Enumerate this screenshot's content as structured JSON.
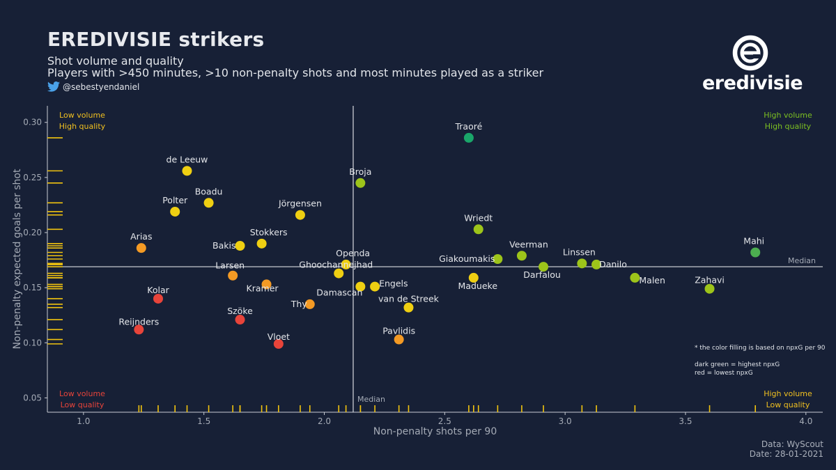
{
  "header": {
    "title": "EREDIVISIE strikers",
    "subtitle1": "Shot volume and quality",
    "subtitle2": "Players with >450 minutes, >10 non-penalty shots and most minutes played as a striker",
    "handle": "@sebestyendaniel",
    "twitter_icon": "twitter-bird-icon"
  },
  "logo": {
    "wordmark": "eredivisie",
    "icon": "eredivisie-e-logo-icon"
  },
  "footer": {
    "source": "Data: WyScout",
    "date": "Date: 28-01-2021"
  },
  "colors": {
    "background": "#172036",
    "axis": "#c8ccd4",
    "rug": "#f2c40f",
    "dark_green": "#1aa66a",
    "green": "#4caf50",
    "yellow_green": "#9dc41a",
    "yellow": "#efcf12",
    "orange": "#f49a24",
    "red": "#e8443a"
  },
  "chart_data": {
    "type": "scatter",
    "xlabel": "Non-penalty shots per 90",
    "ylabel": "Non-penalty expected goals per shot",
    "xlim": [
      0.85,
      4.07
    ],
    "ylim": [
      0.037,
      0.315
    ],
    "xticks": [
      "1.0",
      "1.5",
      "2.0",
      "2.5",
      "3.0",
      "3.5",
      "4.0"
    ],
    "yticks": [
      "0.05",
      "0.10",
      "0.15",
      "0.20",
      "0.25",
      "0.30"
    ],
    "grid": false,
    "median_x": 2.12,
    "median_y": 0.169,
    "median_label": "Median",
    "quadrant_labels": {
      "top_left": [
        "Low volume",
        "High quality"
      ],
      "top_right": [
        "High volume",
        "High quality"
      ],
      "bottom_left": [
        "Low volume",
        "Low quality"
      ],
      "bottom_right": [
        "High volume",
        "Low quality"
      ]
    },
    "color_note": [
      "* the color filling is based on npxG per 90",
      "",
      "dark green = highest npxG",
      "red = lowest npxG"
    ],
    "points": [
      {
        "name": "Traoré",
        "x": 2.6,
        "y": 0.286,
        "color": "dark_green"
      },
      {
        "name": "de Leeuw",
        "x": 1.43,
        "y": 0.256,
        "color": "yellow"
      },
      {
        "name": "Broja",
        "x": 2.15,
        "y": 0.245,
        "color": "yellow_green"
      },
      {
        "name": "Boadu",
        "x": 1.52,
        "y": 0.227,
        "color": "yellow"
      },
      {
        "name": "Polter",
        "x": 1.38,
        "y": 0.219,
        "color": "yellow"
      },
      {
        "name": "Jörgensen",
        "x": 1.9,
        "y": 0.216,
        "color": "yellow"
      },
      {
        "name": "Wriedt",
        "x": 2.64,
        "y": 0.203,
        "color": "yellow_green"
      },
      {
        "name": "Stokkers",
        "x": 1.74,
        "y": 0.19,
        "color": "yellow"
      },
      {
        "name": "Bakis",
        "x": 1.65,
        "y": 0.188,
        "color": "yellow"
      },
      {
        "name": "Arias",
        "x": 1.24,
        "y": 0.186,
        "color": "orange"
      },
      {
        "name": "Mahi",
        "x": 3.79,
        "y": 0.182,
        "color": "green"
      },
      {
        "name": "Veerman",
        "x": 2.82,
        "y": 0.179,
        "color": "yellow_green"
      },
      {
        "name": "Giakoumakis",
        "x": 2.72,
        "y": 0.176,
        "color": "yellow_green"
      },
      {
        "name": "Linssen",
        "x": 3.07,
        "y": 0.172,
        "color": "yellow_green"
      },
      {
        "name": "Danilo",
        "x": 3.13,
        "y": 0.171,
        "color": "yellow_green"
      },
      {
        "name": "Openda",
        "x": 2.09,
        "y": 0.171,
        "color": "yellow"
      },
      {
        "name": "Darfalou",
        "x": 2.91,
        "y": 0.169,
        "color": "yellow_green"
      },
      {
        "name": "Ghoochannejhad",
        "x": 2.06,
        "y": 0.163,
        "color": "yellow"
      },
      {
        "name": "Larsen",
        "x": 1.62,
        "y": 0.161,
        "color": "orange"
      },
      {
        "name": "Madueke",
        "x": 2.62,
        "y": 0.159,
        "color": "yellow"
      },
      {
        "name": "Malen",
        "x": 3.29,
        "y": 0.159,
        "color": "yellow_green"
      },
      {
        "name": "Kramer",
        "x": 1.76,
        "y": 0.153,
        "color": "orange"
      },
      {
        "name": "Engels",
        "x": 2.21,
        "y": 0.151,
        "color": "yellow"
      },
      {
        "name": "Damascan",
        "x": 2.15,
        "y": 0.151,
        "color": "yellow"
      },
      {
        "name": "Zahavi",
        "x": 3.6,
        "y": 0.149,
        "color": "yellow_green"
      },
      {
        "name": "Kolar",
        "x": 1.31,
        "y": 0.14,
        "color": "red"
      },
      {
        "name": "Thy",
        "x": 1.94,
        "y": 0.135,
        "color": "orange"
      },
      {
        "name": "van de Streek",
        "x": 2.35,
        "y": 0.132,
        "color": "yellow"
      },
      {
        "name": "Szöke",
        "x": 1.65,
        "y": 0.121,
        "color": "red"
      },
      {
        "name": "Reijnders",
        "x": 1.23,
        "y": 0.112,
        "color": "red"
      },
      {
        "name": "Pavlidis",
        "x": 2.31,
        "y": 0.103,
        "color": "orange"
      },
      {
        "name": "Vloet",
        "x": 1.81,
        "y": 0.099,
        "color": "red"
      }
    ]
  }
}
